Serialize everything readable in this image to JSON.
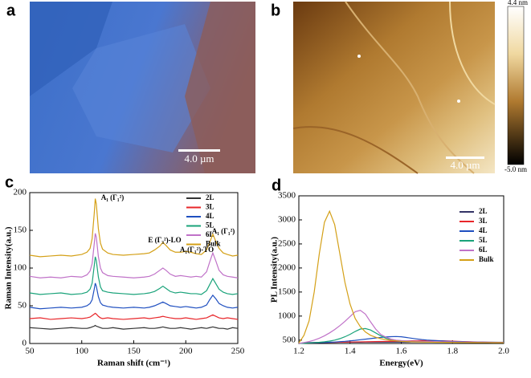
{
  "panels": [
    {
      "label": "a",
      "scale_bar": "4.0 µm"
    },
    {
      "label": "b",
      "scale_bar": "4.0 µm",
      "colorbar": {
        "max": "4.4 nm",
        "min": "-5.0 nm"
      }
    },
    {
      "label": "c"
    },
    {
      "label": "d"
    }
  ],
  "chart_data": [
    {
      "type": "line",
      "x_label": "Raman shift (cm⁻¹)",
      "y_label": "Raman Intensity(a.u.)",
      "annotations": [
        "A₁ (Γ₁²)",
        "E (Γ₃²)-LO",
        "A₁(Γ₁²)-TO",
        "A₁ (Γ₁²)"
      ],
      "xlim": [
        50,
        250
      ],
      "xticks": [
        50,
        100,
        150,
        200,
        250
      ],
      "ylim": [
        0,
        200
      ],
      "yticks": [
        0,
        50,
        100,
        150,
        200
      ],
      "x": [
        50,
        60,
        70,
        80,
        90,
        100,
        105,
        108,
        110,
        112,
        113,
        114,
        116,
        118,
        120,
        125,
        130,
        140,
        150,
        160,
        165,
        170,
        175,
        178,
        181,
        185,
        190,
        195,
        200,
        205,
        210,
        215,
        220,
        223,
        226,
        229,
        232,
        236,
        240,
        245,
        250
      ],
      "series": [
        {
          "name": "2L",
          "color": "#333333",
          "values": [
            21,
            20,
            19,
            20,
            21,
            20,
            20,
            21,
            22,
            23,
            24,
            23,
            22,
            21,
            20,
            20,
            21,
            19,
            20,
            21,
            20,
            20,
            21,
            22,
            21,
            20,
            20,
            21,
            20,
            19,
            20,
            21,
            20,
            21,
            22,
            21,
            20,
            20,
            19,
            21,
            20
          ]
        },
        {
          "name": "3L",
          "color": "#e8262a",
          "values": [
            33,
            34,
            32,
            33,
            34,
            33,
            34,
            35,
            37,
            39,
            40,
            39,
            36,
            34,
            33,
            34,
            33,
            32,
            33,
            34,
            33,
            34,
            35,
            36,
            35,
            34,
            33,
            33,
            34,
            33,
            32,
            33,
            34,
            36,
            38,
            36,
            34,
            33,
            34,
            33,
            32
          ]
        },
        {
          "name": "4L",
          "color": "#1f4fc0",
          "values": [
            48,
            46,
            47,
            48,
            47,
            48,
            50,
            53,
            58,
            72,
            80,
            76,
            62,
            54,
            51,
            49,
            48,
            47,
            48,
            47,
            48,
            50,
            53,
            55,
            53,
            50,
            49,
            48,
            49,
            48,
            47,
            48,
            51,
            58,
            64,
            59,
            53,
            50,
            48,
            47,
            48
          ]
        },
        {
          "name": "5L",
          "color": "#1aa37a",
          "values": [
            67,
            65,
            66,
            67,
            65,
            66,
            68,
            72,
            80,
            103,
            115,
            110,
            88,
            75,
            70,
            68,
            67,
            66,
            65,
            66,
            67,
            69,
            73,
            76,
            73,
            69,
            67,
            68,
            67,
            66,
            66,
            65,
            70,
            78,
            86,
            79,
            72,
            68,
            66,
            65,
            66
          ]
        },
        {
          "name": "6L",
          "color": "#c072c8",
          "values": [
            89,
            87,
            88,
            87,
            89,
            88,
            91,
            96,
            106,
            132,
            146,
            141,
            115,
            100,
            94,
            90,
            89,
            88,
            87,
            88,
            89,
            92,
            97,
            100,
            97,
            92,
            89,
            90,
            89,
            88,
            89,
            88,
            95,
            108,
            120,
            109,
            97,
            91,
            89,
            88,
            87
          ]
        },
        {
          "name": "Bulk",
          "color": "#d4a017",
          "values": [
            117,
            115,
            116,
            117,
            116,
            118,
            121,
            126,
            139,
            172,
            192,
            185,
            152,
            133,
            125,
            120,
            118,
            117,
            118,
            119,
            120,
            124,
            129,
            134,
            130,
            124,
            121,
            121,
            122,
            121,
            119,
            118,
            124,
            134,
            145,
            135,
            126,
            120,
            118,
            116,
            117
          ]
        }
      ]
    },
    {
      "type": "line",
      "x_label": "Energy(eV)",
      "y_label": "PL Intensity(a.u.)",
      "xlim": [
        1.2,
        2
      ],
      "xticks": [
        1.2,
        1.4,
        1.6,
        1.8,
        {
          "value": 2,
          "label": "2.0"
        }
      ],
      "ylim": [
        430,
        3500
      ],
      "yticks": [
        500,
        1000,
        1500,
        2000,
        2500,
        3000,
        3500
      ],
      "x": [
        1.2,
        1.22,
        1.24,
        1.26,
        1.28,
        1.3,
        1.32,
        1.34,
        1.36,
        1.38,
        1.4,
        1.42,
        1.44,
        1.46,
        1.48,
        1.5,
        1.52,
        1.54,
        1.56,
        1.58,
        1.6,
        1.62,
        1.64,
        1.66,
        1.68,
        1.7,
        1.72,
        1.74,
        1.76,
        1.78,
        1.8,
        1.82,
        1.84,
        1.86,
        1.88,
        1.9,
        1.92,
        1.94,
        1.96,
        1.98,
        2
      ],
      "series": [
        {
          "name": "2L",
          "color": "#333366",
          "values": [
            430,
            445,
            450,
            452,
            453,
            454,
            455,
            455,
            456,
            456,
            457,
            457,
            457,
            458,
            458,
            458,
            458,
            459,
            459,
            459,
            459,
            459,
            460,
            460,
            460,
            460,
            460,
            459,
            459,
            459,
            459,
            458,
            458,
            458,
            457,
            457,
            457,
            456,
            456,
            455,
            455
          ]
        },
        {
          "name": "3L",
          "color": "#e8262a",
          "values": [
            430,
            440,
            444,
            446,
            448,
            450,
            452,
            454,
            456,
            458,
            460,
            462,
            464,
            466,
            468,
            470,
            472,
            474,
            476,
            478,
            480,
            483,
            486,
            489,
            491,
            492,
            491,
            489,
            486,
            482,
            478,
            474,
            470,
            467,
            464,
            461,
            458,
            456,
            454,
            452,
            450
          ]
        },
        {
          "name": "4L",
          "color": "#1f4fc0",
          "values": [
            430,
            438,
            442,
            445,
            448,
            450,
            455,
            460,
            468,
            475,
            485,
            495,
            508,
            520,
            532,
            545,
            556,
            565,
            572,
            575,
            570,
            555,
            540,
            525,
            512,
            502,
            495,
            488,
            482,
            477,
            473,
            470,
            467,
            464,
            462,
            460,
            458,
            456,
            455,
            453,
            452
          ]
        },
        {
          "name": "5L",
          "color": "#1aa37a",
          "values": [
            430,
            435,
            440,
            448,
            455,
            465,
            480,
            500,
            530,
            570,
            620,
            680,
            730,
            740,
            710,
            650,
            590,
            540,
            510,
            490,
            480,
            475,
            470,
            467,
            465,
            463,
            461,
            460,
            459,
            458,
            457,
            456,
            455,
            454,
            453,
            452,
            451,
            450,
            450,
            449,
            448
          ]
        },
        {
          "name": "6L",
          "color": "#c072c8",
          "values": [
            430,
            450,
            470,
            500,
            540,
            590,
            650,
            720,
            800,
            890,
            990,
            1090,
            1120,
            1040,
            880,
            730,
            620,
            560,
            520,
            500,
            490,
            485,
            480,
            478,
            475,
            473,
            470,
            468,
            466,
            465,
            463,
            462,
            460,
            459,
            458,
            457,
            456,
            455,
            454,
            453,
            452
          ]
        },
        {
          "name": "Bulk",
          "color": "#d4a017",
          "values": [
            440,
            600,
            900,
            1500,
            2300,
            2950,
            3180,
            2900,
            2300,
            1700,
            1250,
            950,
            780,
            670,
            600,
            560,
            530,
            510,
            495,
            485,
            475,
            470,
            465,
            462,
            460,
            458,
            456,
            455,
            454,
            453,
            452,
            451,
            450,
            450,
            449,
            449,
            448,
            448,
            447,
            447,
            446
          ]
        }
      ]
    }
  ]
}
